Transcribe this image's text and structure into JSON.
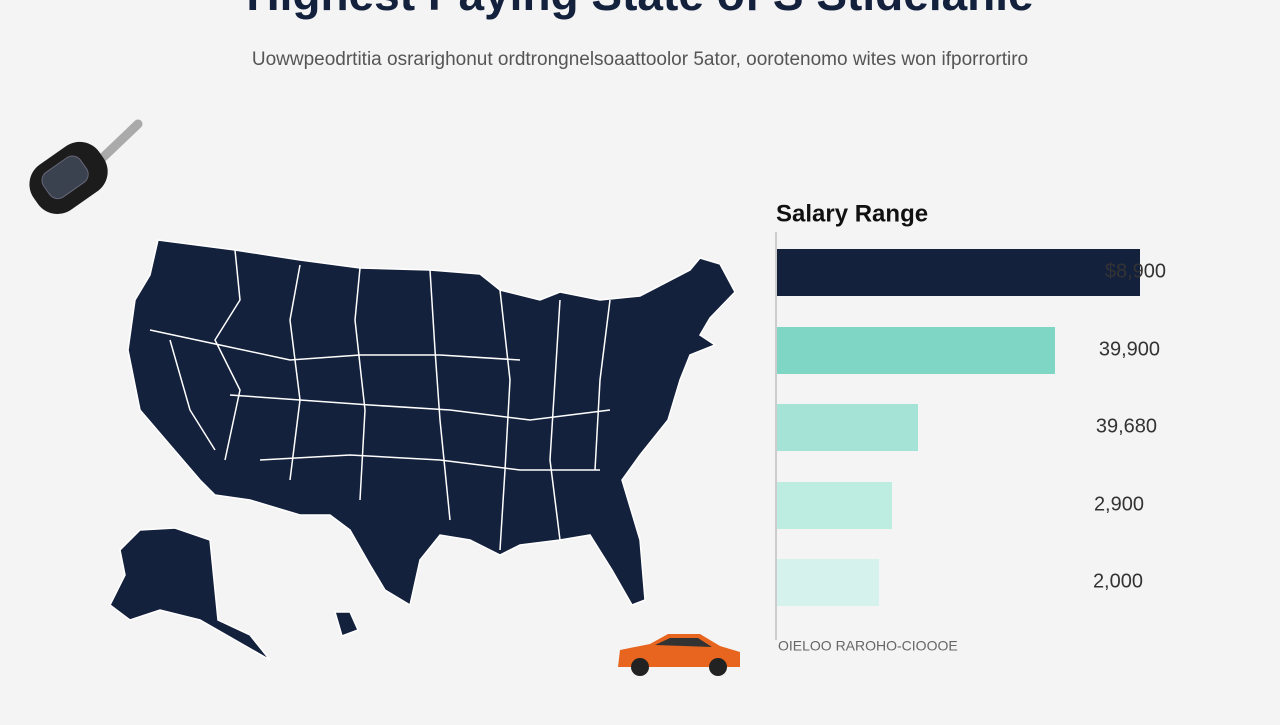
{
  "header": {
    "title": "Highest Paying State of S Stidelanie",
    "subtitle": "Uowwpeodrtitia osrarighonut ordtrongnelsoaattoolor 5ator, oorotenomo wites won ifporrortiro"
  },
  "legend": {
    "title": "Salary Range"
  },
  "bars": [
    {
      "label": "$8,900"
    },
    {
      "label": "39,900"
    },
    {
      "label": "39,680"
    },
    {
      "label": "2,900"
    },
    {
      "label": "2,000"
    }
  ],
  "footer": {
    "note": "OIELOO RAROHO-CIOOOE"
  }
}
